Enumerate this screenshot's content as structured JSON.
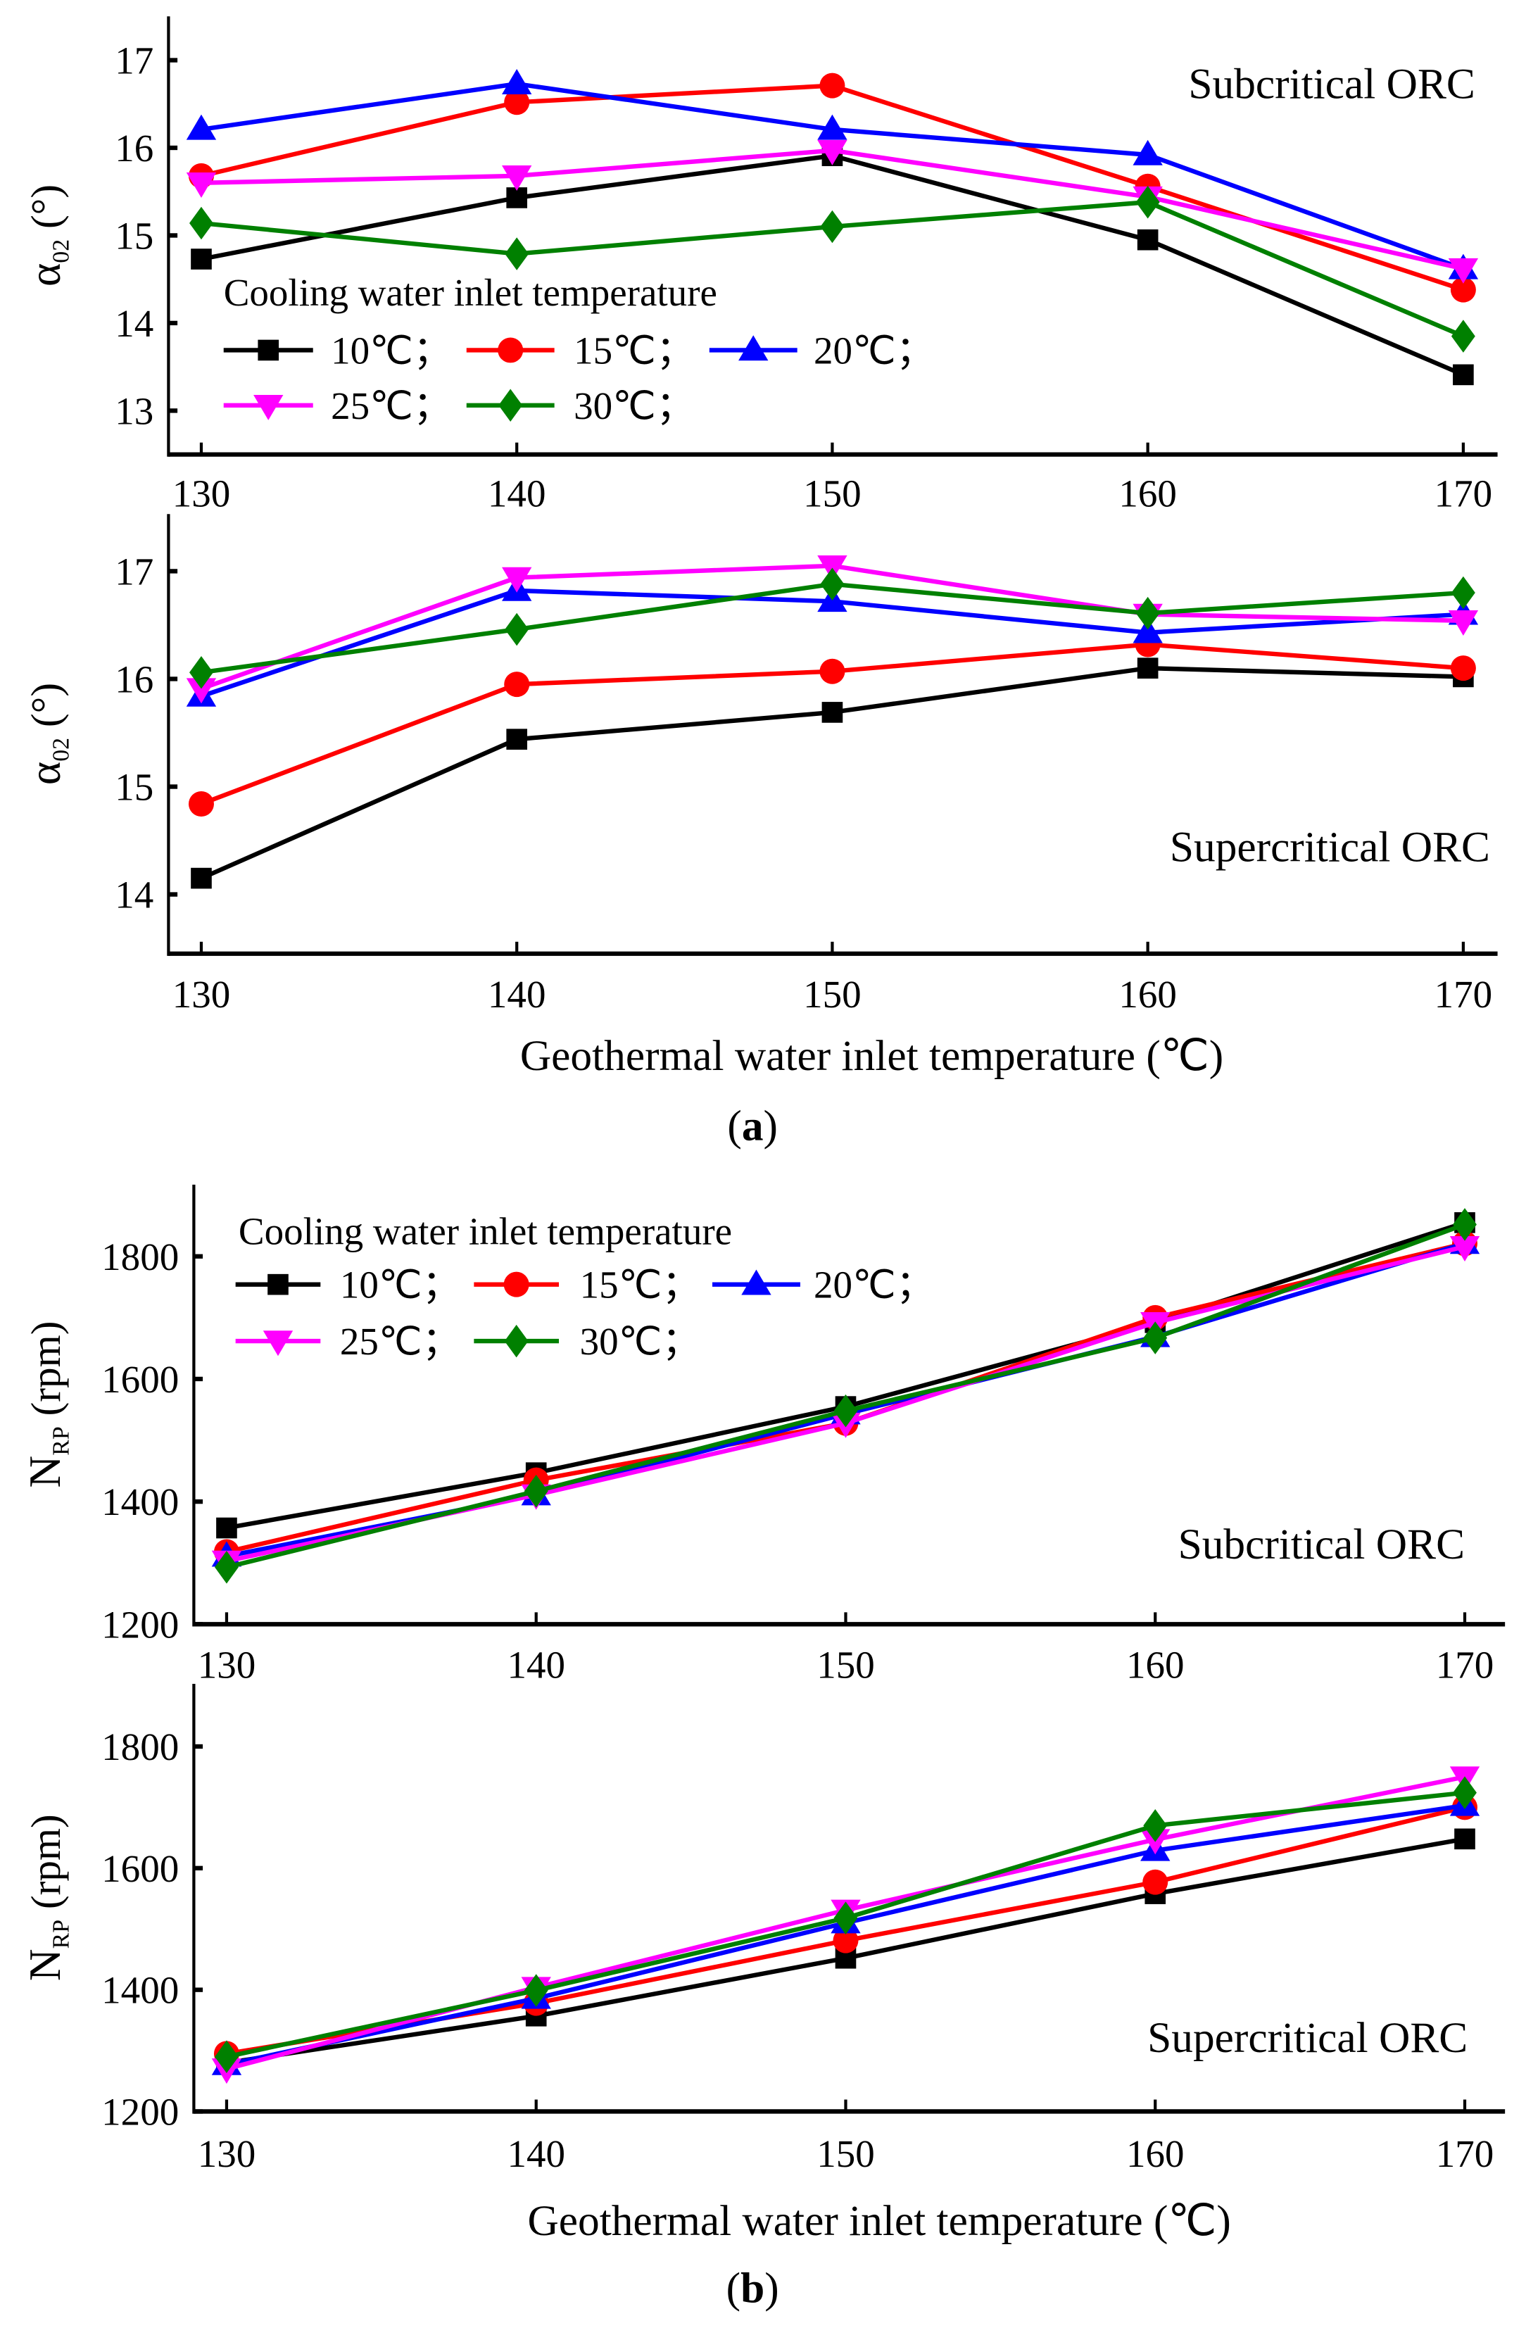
{
  "series_styles": [
    {
      "name": "10℃；",
      "color": "#000000",
      "marker": "square"
    },
    {
      "name": "15℃；",
      "color": "#ff0000",
      "marker": "circle"
    },
    {
      "name": "20℃；",
      "color": "#0000ff",
      "marker": "triangle-up"
    },
    {
      "name": "25℃；",
      "color": "#ff00ff",
      "marker": "triangle-down"
    },
    {
      "name": "30℃；",
      "color": "#008000",
      "marker": "diamond"
    }
  ],
  "legend_title": "Cooling water inlet temperature",
  "xlabel": "Geothermal water inlet temperature (℃)",
  "captions": {
    "a": "a",
    "b": "b"
  },
  "chart_data": [
    {
      "type": "line",
      "panel": "a-subcritical",
      "annotation": "Subcritical ORC",
      "ylabel_main": "α",
      "ylabel_sub": "02",
      "ylabel_unit": " (°)",
      "x": [
        130,
        140,
        150,
        160,
        170
      ],
      "xticks": [
        "130",
        "140",
        "150",
        "160",
        "170"
      ],
      "yticks": [
        13,
        14,
        15,
        16,
        17
      ],
      "ylim": [
        12.5,
        17.5
      ],
      "legend": "middle-left",
      "series": [
        {
          "name": "10℃",
          "values": [
            14.73,
            15.43,
            15.91,
            14.95,
            13.41
          ]
        },
        {
          "name": "15℃",
          "values": [
            15.68,
            16.52,
            16.71,
            15.56,
            14.38
          ]
        },
        {
          "name": "20℃",
          "values": [
            16.21,
            16.73,
            16.21,
            15.92,
            14.62
          ]
        },
        {
          "name": "25℃",
          "values": [
            15.6,
            15.68,
            15.97,
            15.44,
            14.62
          ]
        },
        {
          "name": "30℃",
          "values": [
            15.14,
            14.79,
            15.1,
            15.38,
            13.85
          ]
        }
      ]
    },
    {
      "type": "line",
      "panel": "a-supercritical",
      "annotation": "Supercritical ORC",
      "ylabel_main": "α",
      "ylabel_sub": "02",
      "ylabel_unit": " (°)",
      "x": [
        130,
        140,
        150,
        160,
        170
      ],
      "xticks": [
        "130",
        "140",
        "150",
        "160",
        "170"
      ],
      "yticks": [
        14,
        15,
        16,
        17
      ],
      "ylim": [
        13.45,
        17.53
      ],
      "series": [
        {
          "name": "10℃",
          "values": [
            14.15,
            15.44,
            15.69,
            16.1,
            16.02
          ]
        },
        {
          "name": "15℃",
          "values": [
            14.84,
            15.95,
            16.07,
            16.32,
            16.1
          ]
        },
        {
          "name": "20℃",
          "values": [
            15.84,
            16.82,
            16.72,
            16.43,
            16.6
          ]
        },
        {
          "name": "25℃",
          "values": [
            15.91,
            16.94,
            17.05,
            16.6,
            16.54
          ]
        },
        {
          "name": "30℃",
          "values": [
            16.06,
            16.46,
            16.88,
            16.61,
            16.8
          ]
        }
      ]
    },
    {
      "type": "line",
      "panel": "b-subcritical",
      "annotation": "Subcritical ORC",
      "ylabel_main": "N",
      "ylabel_sub": "RP",
      "ylabel_unit": " (rpm)",
      "x": [
        130,
        140,
        150,
        160,
        170
      ],
      "xticks": [
        "130",
        "140",
        "150",
        "160",
        "170"
      ],
      "yticks": [
        1200,
        1400,
        1600,
        1800
      ],
      "ylim": [
        1200,
        1917
      ],
      "legend": "top-left",
      "series": [
        {
          "name": "10℃",
          "values": [
            1357,
            1447,
            1555,
            1692,
            1855
          ]
        },
        {
          "name": "15℃",
          "values": [
            1318,
            1435,
            1528,
            1700,
            1821
          ]
        },
        {
          "name": "20℃",
          "values": [
            1311,
            1411,
            1543,
            1669,
            1821
          ]
        },
        {
          "name": "25℃",
          "values": [
            1303,
            1411,
            1528,
            1692,
            1816
          ]
        },
        {
          "name": "30℃",
          "values": [
            1293,
            1417,
            1548,
            1667,
            1852
          ]
        }
      ]
    },
    {
      "type": "line",
      "panel": "b-supercritical",
      "annotation": "Supercritical ORC",
      "ylabel_main": "N",
      "ylabel_sub": "RP",
      "ylabel_unit": " (rpm)",
      "x": [
        130,
        140,
        150,
        160,
        170
      ],
      "xticks": [
        "130",
        "140",
        "150",
        "160",
        "170"
      ],
      "yticks": [
        1200,
        1400,
        1600,
        1800
      ],
      "ylim": [
        1200,
        1903
      ],
      "series": [
        {
          "name": "10℃",
          "values": [
            1280,
            1357,
            1452,
            1558,
            1648
          ]
        },
        {
          "name": "15℃",
          "values": [
            1295,
            1378,
            1481,
            1577,
            1700
          ]
        },
        {
          "name": "20℃",
          "values": [
            1277,
            1386,
            1510,
            1629,
            1703
          ]
        },
        {
          "name": "25℃",
          "values": [
            1270,
            1404,
            1531,
            1647,
            1750
          ]
        },
        {
          "name": "30℃",
          "values": [
            1290,
            1399,
            1518,
            1670,
            1724
          ]
        }
      ]
    }
  ]
}
